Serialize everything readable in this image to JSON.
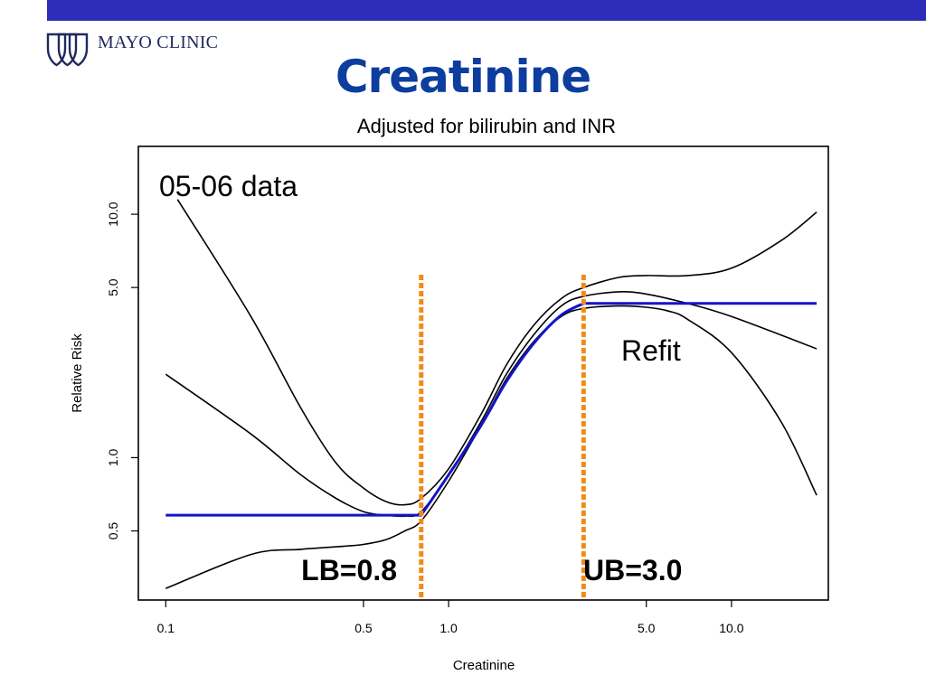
{
  "logo": {
    "text": "MAYO CLINIC",
    "icon": "mayo-shields-icon"
  },
  "slide": {
    "title": "Creatinine"
  },
  "colors": {
    "top_bar": "#2b2db8",
    "title": "#0d3d9e",
    "refit": "#1414c8",
    "bounds": "#f28a1a",
    "curves": "#000000"
  },
  "chart_data": {
    "type": "line",
    "title": "Adjusted for bilirubin and INR",
    "xlabel": "Creatinine",
    "ylabel": "Relative Risk",
    "xscale": "log",
    "yscale": "log",
    "xlim": [
      0.08,
      22
    ],
    "ylim": [
      0.26,
      19
    ],
    "grid": false,
    "xticks": [
      0.1,
      0.5,
      1.0,
      5.0,
      10.0
    ],
    "xtick_labels": [
      "0.1",
      "0.5",
      "1.0",
      "5.0",
      "10.0"
    ],
    "yticks": [
      0.5,
      1.0,
      5.0,
      10.0
    ],
    "ytick_labels": [
      "0.5",
      "1.0",
      "5.0",
      "10.0"
    ],
    "series": [
      {
        "role": "estimate",
        "x": [
          0.1,
          0.2,
          0.3,
          0.4,
          0.5,
          0.6,
          0.7,
          0.8,
          1.0,
          1.3,
          1.6,
          2.0,
          2.5,
          3.0,
          4.0,
          5.0,
          7.0,
          10.0,
          20.0
        ],
        "y": [
          2.2,
          1.25,
          0.85,
          0.68,
          0.6,
          0.58,
          0.575,
          0.6,
          0.85,
          1.4,
          2.2,
          3.2,
          4.2,
          4.6,
          4.8,
          4.7,
          4.3,
          3.8,
          2.8
        ]
      },
      {
        "role": "upper-band",
        "x": [
          0.11,
          0.2,
          0.3,
          0.4,
          0.5,
          0.6,
          0.7,
          0.8,
          1.0,
          1.3,
          1.6,
          2.0,
          2.5,
          3.0,
          4.0,
          5.0,
          7.0,
          10.0,
          15.0,
          20.0
        ],
        "y": [
          11.5,
          3.8,
          1.6,
          0.95,
          0.75,
          0.66,
          0.64,
          0.68,
          0.9,
          1.5,
          2.4,
          3.5,
          4.5,
          5.0,
          5.5,
          5.6,
          5.6,
          6.0,
          7.8,
          10.2
        ]
      },
      {
        "role": "lower-band",
        "x": [
          0.1,
          0.2,
          0.3,
          0.4,
          0.5,
          0.6,
          0.7,
          0.8,
          1.0,
          1.3,
          1.6,
          2.0,
          2.5,
          3.0,
          4.0,
          5.0,
          6.0,
          7.0,
          10.0,
          15.0,
          20.0
        ],
        "y": [
          0.29,
          0.4,
          0.42,
          0.43,
          0.44,
          0.46,
          0.5,
          0.55,
          0.8,
          1.35,
          2.1,
          3.0,
          3.8,
          4.1,
          4.2,
          4.15,
          4.0,
          3.7,
          2.7,
          1.4,
          0.7
        ]
      },
      {
        "role": "refit",
        "x": [
          0.1,
          0.8,
          1.0,
          1.3,
          1.6,
          2.0,
          2.5,
          3.0,
          20.0
        ],
        "y": [
          0.58,
          0.58,
          0.85,
          1.35,
          2.05,
          2.95,
          3.85,
          4.3,
          4.3
        ]
      }
    ],
    "bounds": [
      {
        "x": 0.8,
        "label": "LB=0.8"
      },
      {
        "x": 3.0,
        "label": "UB=3.0"
      }
    ],
    "annotations": [
      {
        "text": "05-06 data"
      },
      {
        "text": "Refit"
      }
    ]
  }
}
